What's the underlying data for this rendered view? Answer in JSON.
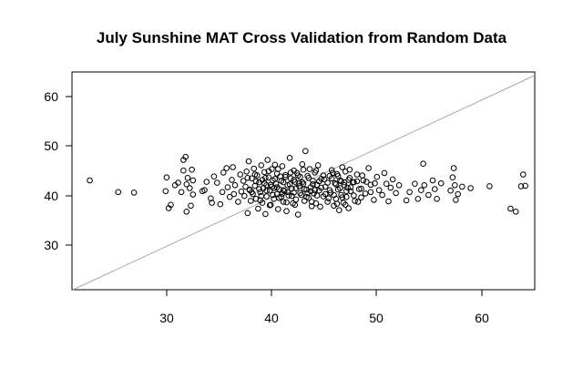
{
  "chart_data": {
    "type": "scatter",
    "title": "July Sunshine MAT Cross Validation from Random Data",
    "xlabel": "",
    "ylabel": "",
    "xlim": [
      20.5,
      64.5
    ],
    "ylim": [
      20.6,
      65.2
    ],
    "x_ticks": [
      "30",
      "40",
      "50",
      "60"
    ],
    "y_ticks": [
      "30",
      "40",
      "50",
      "60"
    ],
    "reference_line": {
      "type": "y=x",
      "color": "#aaaaaa"
    },
    "grid": false,
    "legend": "none",
    "point_style": "open-circle",
    "point_color": "#000000",
    "series": [
      {
        "points": [
          [
            22.2,
            43.0
          ],
          [
            24.9,
            40.6
          ],
          [
            26.4,
            40.5
          ],
          [
            29.4,
            40.8
          ],
          [
            29.5,
            43.6
          ],
          [
            29.7,
            37.3
          ],
          [
            29.9,
            38.0
          ],
          [
            30.3,
            42.0
          ],
          [
            30.6,
            42.5
          ],
          [
            30.9,
            40.6
          ],
          [
            31.1,
            45.0
          ],
          [
            31.1,
            47.2
          ],
          [
            31.3,
            47.8
          ],
          [
            31.4,
            42.2
          ],
          [
            31.5,
            43.5
          ],
          [
            31.4,
            36.6
          ],
          [
            31.7,
            41.4
          ],
          [
            31.8,
            37.8
          ],
          [
            31.9,
            45.2
          ],
          [
            32.0,
            40.1
          ],
          [
            32.0,
            43.0
          ],
          [
            32.9,
            40.8
          ],
          [
            33.1,
            41.0
          ],
          [
            33.3,
            42.7
          ],
          [
            33.7,
            39.3
          ],
          [
            33.8,
            38.4
          ],
          [
            34.0,
            43.8
          ],
          [
            34.3,
            42.5
          ],
          [
            34.6,
            38.1
          ],
          [
            34.8,
            40.6
          ],
          [
            34.9,
            44.6
          ],
          [
            35.2,
            45.5
          ],
          [
            35.3,
            41.6
          ],
          [
            35.5,
            39.6
          ],
          [
            35.7,
            43.1
          ],
          [
            35.8,
            45.7
          ],
          [
            35.9,
            40.2
          ],
          [
            36.0,
            42.0
          ],
          [
            36.3,
            38.6
          ],
          [
            36.5,
            44.2
          ],
          [
            36.6,
            40.7
          ],
          [
            36.8,
            42.9
          ],
          [
            36.9,
            39.8
          ],
          [
            37.0,
            41.7
          ],
          [
            37.1,
            44.8
          ],
          [
            37.2,
            36.3
          ],
          [
            37.3,
            46.9
          ],
          [
            37.4,
            41.1
          ],
          [
            37.5,
            38.8
          ],
          [
            37.6,
            43.4
          ],
          [
            37.7,
            40.2
          ],
          [
            37.8,
            45.4
          ],
          [
            37.9,
            41.9
          ],
          [
            38.0,
            39.2
          ],
          [
            38.1,
            44.0
          ],
          [
            38.2,
            37.2
          ],
          [
            38.3,
            42.6
          ],
          [
            38.4,
            40.6
          ],
          [
            38.5,
            46.1
          ],
          [
            38.6,
            43.1
          ],
          [
            38.6,
            38.4
          ],
          [
            38.7,
            41.4
          ],
          [
            38.8,
            44.7
          ],
          [
            38.9,
            36.1
          ],
          [
            39.0,
            42.0
          ],
          [
            39.0,
            39.7
          ],
          [
            39.1,
            47.2
          ],
          [
            39.2,
            43.6
          ],
          [
            39.3,
            40.9
          ],
          [
            39.4,
            38.0
          ],
          [
            39.5,
            45.3
          ],
          [
            39.5,
            41.7
          ],
          [
            39.6,
            43.0
          ],
          [
            39.7,
            39.2
          ],
          [
            39.8,
            46.2
          ],
          [
            39.9,
            42.3
          ],
          [
            40.0,
            40.2
          ],
          [
            40.0,
            44.4
          ],
          [
            40.1,
            37.1
          ],
          [
            40.2,
            41.2
          ],
          [
            40.3,
            43.8
          ],
          [
            40.4,
            39.6
          ],
          [
            40.5,
            45.9
          ],
          [
            40.6,
            42.6
          ],
          [
            40.6,
            38.6
          ],
          [
            40.7,
            40.8
          ],
          [
            40.8,
            44.1
          ],
          [
            40.9,
            36.7
          ],
          [
            41.0,
            42.0
          ],
          [
            41.1,
            39.9
          ],
          [
            41.2,
            47.6
          ],
          [
            41.3,
            43.4
          ],
          [
            41.4,
            41.3
          ],
          [
            41.5,
            38.3
          ],
          [
            41.6,
            45.0
          ],
          [
            41.6,
            40.5
          ],
          [
            41.7,
            42.7
          ],
          [
            41.8,
            39.1
          ],
          [
            41.9,
            44.5
          ],
          [
            42.0,
            36.0
          ],
          [
            42.1,
            41.8
          ],
          [
            42.2,
            43.7
          ],
          [
            42.3,
            40.0
          ],
          [
            42.4,
            46.3
          ],
          [
            42.5,
            42.3
          ],
          [
            42.6,
            38.8
          ],
          [
            42.7,
            49.0
          ],
          [
            42.8,
            41.1
          ],
          [
            42.9,
            43.9
          ],
          [
            43.0,
            39.4
          ],
          [
            43.1,
            45.3
          ],
          [
            43.2,
            41.6
          ],
          [
            43.3,
            37.7
          ],
          [
            43.4,
            42.9
          ],
          [
            43.5,
            40.3
          ],
          [
            43.6,
            44.6
          ],
          [
            43.7,
            38.3
          ],
          [
            43.8,
            42.1
          ],
          [
            43.9,
            46.1
          ],
          [
            44.0,
            40.9
          ],
          [
            44.2,
            43.3
          ],
          [
            44.4,
            39.7
          ],
          [
            44.6,
            41.7
          ],
          [
            44.8,
            38.6
          ],
          [
            45.0,
            43.9
          ],
          [
            45.1,
            40.5
          ],
          [
            45.2,
            45.1
          ],
          [
            45.4,
            37.8
          ],
          [
            45.5,
            42.4
          ],
          [
            45.6,
            39.2
          ],
          [
            45.7,
            44.3
          ],
          [
            45.8,
            41.1
          ],
          [
            45.9,
            36.9
          ],
          [
            46.0,
            43.0
          ],
          [
            46.1,
            40.0
          ],
          [
            46.2,
            45.7
          ],
          [
            46.3,
            38.4
          ],
          [
            46.4,
            42.0
          ],
          [
            46.5,
            44.8
          ],
          [
            46.6,
            39.6
          ],
          [
            46.7,
            41.5
          ],
          [
            46.8,
            37.3
          ],
          [
            46.9,
            43.5
          ],
          [
            47.0,
            40.8
          ],
          [
            47.2,
            42.6
          ],
          [
            47.4,
            38.8
          ],
          [
            47.6,
            44.2
          ],
          [
            47.8,
            41.2
          ],
          [
            48.0,
            39.5
          ],
          [
            48.2,
            43.0
          ],
          [
            48.4,
            40.3
          ],
          [
            48.7,
            45.5
          ],
          [
            48.9,
            42.1
          ],
          [
            49.2,
            39.0
          ],
          [
            49.5,
            43.7
          ],
          [
            49.7,
            41.0
          ],
          [
            50.0,
            40.0
          ],
          [
            50.2,
            44.5
          ],
          [
            50.4,
            42.3
          ],
          [
            50.6,
            38.7
          ],
          [
            50.8,
            41.5
          ],
          [
            51.0,
            43.2
          ],
          [
            51.3,
            40.4
          ],
          [
            51.6,
            42.0
          ],
          [
            52.3,
            38.9
          ],
          [
            52.6,
            40.6
          ],
          [
            53.1,
            42.3
          ],
          [
            53.4,
            39.2
          ],
          [
            53.7,
            41.0
          ],
          [
            53.9,
            46.4
          ],
          [
            54.0,
            42.0
          ],
          [
            54.4,
            40.0
          ],
          [
            54.8,
            43.0
          ],
          [
            55.0,
            41.2
          ],
          [
            55.2,
            39.2
          ],
          [
            55.6,
            42.4
          ],
          [
            56.5,
            40.9
          ],
          [
            56.7,
            43.6
          ],
          [
            56.8,
            45.5
          ],
          [
            56.9,
            42.0
          ],
          [
            57.0,
            39.0
          ],
          [
            57.2,
            40.2
          ],
          [
            57.6,
            41.7
          ],
          [
            58.4,
            41.4
          ],
          [
            60.2,
            41.8
          ],
          [
            62.2,
            37.2
          ],
          [
            62.7,
            36.6
          ],
          [
            63.2,
            41.8
          ],
          [
            63.4,
            44.2
          ],
          [
            63.6,
            41.9
          ],
          [
            37.2,
            43.5
          ],
          [
            37.6,
            40.6
          ],
          [
            38.0,
            42.8
          ],
          [
            38.3,
            41.2
          ],
          [
            38.5,
            39.8
          ],
          [
            38.8,
            42.4
          ],
          [
            39.0,
            40.9
          ],
          [
            39.2,
            44.9
          ],
          [
            39.4,
            42.1
          ],
          [
            39.6,
            40.0
          ],
          [
            39.8,
            43.3
          ],
          [
            40.0,
            41.6
          ],
          [
            40.2,
            39.4
          ],
          [
            40.4,
            42.9
          ],
          [
            40.6,
            41.0
          ],
          [
            40.8,
            43.7
          ],
          [
            41.0,
            40.6
          ],
          [
            41.2,
            42.2
          ],
          [
            41.4,
            39.8
          ],
          [
            41.6,
            43.1
          ],
          [
            41.8,
            41.4
          ],
          [
            42.0,
            44.0
          ],
          [
            42.2,
            40.4
          ],
          [
            42.4,
            42.6
          ],
          [
            42.6,
            41.2
          ],
          [
            42.8,
            39.6
          ],
          [
            43.0,
            43.5
          ],
          [
            43.2,
            40.8
          ],
          [
            43.4,
            42.2
          ],
          [
            43.6,
            41.0
          ],
          [
            43.8,
            39.9
          ],
          [
            44.0,
            42.8
          ],
          [
            44.2,
            41.5
          ],
          [
            44.4,
            44.0
          ],
          [
            44.6,
            40.2
          ],
          [
            44.8,
            42.5
          ],
          [
            45.0,
            41.0
          ],
          [
            45.2,
            43.4
          ],
          [
            45.4,
            40.0
          ],
          [
            45.6,
            42.2
          ],
          [
            45.8,
            43.9
          ],
          [
            46.0,
            41.4
          ],
          [
            46.2,
            39.5
          ],
          [
            46.4,
            42.6
          ],
          [
            46.6,
            40.8
          ],
          [
            46.8,
            43.1
          ],
          [
            47.0,
            41.6
          ],
          [
            47.3,
            39.9
          ],
          [
            47.6,
            42.8
          ],
          [
            48.0,
            41.3
          ],
          [
            37.4,
            41.0
          ],
          [
            37.9,
            44.2
          ],
          [
            38.4,
            38.9
          ],
          [
            38.9,
            43.5
          ],
          [
            39.3,
            37.9
          ],
          [
            39.7,
            41.4
          ],
          [
            40.1,
            45.3
          ],
          [
            40.5,
            40.3
          ],
          [
            40.9,
            38.5
          ],
          [
            41.3,
            44.6
          ],
          [
            41.7,
            38.0
          ],
          [
            42.1,
            42.4
          ],
          [
            42.5,
            45.2
          ],
          [
            42.9,
            40.4
          ],
          [
            43.3,
            38.6
          ],
          [
            43.7,
            45.0
          ],
          [
            44.1,
            37.6
          ],
          [
            44.5,
            43.2
          ],
          [
            44.9,
            39.3
          ],
          [
            45.3,
            44.5
          ],
          [
            45.7,
            38.2
          ],
          [
            46.1,
            42.8
          ],
          [
            46.5,
            38.0
          ],
          [
            46.9,
            45.2
          ],
          [
            47.3,
            42.6
          ],
          [
            47.7,
            38.6
          ],
          [
            48.1,
            44.0
          ],
          [
            48.5,
            42.7
          ],
          [
            48.9,
            40.6
          ],
          [
            49.3,
            42.4
          ]
        ]
      }
    ]
  }
}
